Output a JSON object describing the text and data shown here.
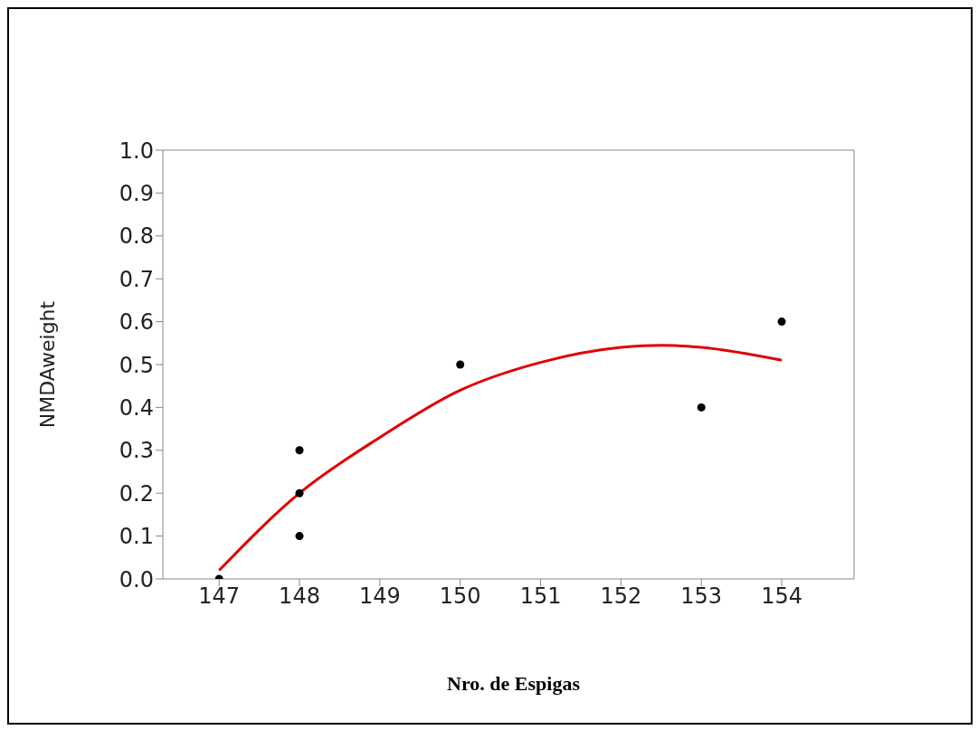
{
  "chart_data": {
    "type": "scatter",
    "xlabel": "Nro. de Espigas",
    "ylabel": "NMDAweight",
    "xlim": [
      146.3,
      154.9
    ],
    "xticks": [
      147,
      148,
      149,
      150,
      151,
      152,
      153,
      154
    ],
    "ylim": [
      0,
      1
    ],
    "yticks": [
      {
        "value": 0,
        "label": "0.0"
      },
      {
        "value": 0.1,
        "label": "0.1"
      },
      {
        "value": 0.2,
        "label": "0.2"
      },
      {
        "value": 0.3,
        "label": "0.3"
      },
      {
        "value": 0.4,
        "label": "0.4"
      },
      {
        "value": 0.5,
        "label": "0.5"
      },
      {
        "value": 0.6,
        "label": "0.6"
      },
      {
        "value": 0.7,
        "label": "0.7"
      },
      {
        "value": 0.8,
        "label": "0.8"
      },
      {
        "value": 0.9,
        "label": "0.9"
      },
      {
        "value": 1,
        "label": "1.0"
      }
    ],
    "grid": false,
    "marker": "circle",
    "series": [
      {
        "type": "scatter",
        "color": "#000000",
        "x": [
          147,
          148,
          148,
          148,
          150,
          153,
          154
        ],
        "values": [
          0,
          0.3,
          0.2,
          0.1,
          0.5,
          0.4,
          0.6
        ]
      },
      {
        "type": "line",
        "color": "#e00000",
        "line_style": "solid",
        "marker": "none",
        "x": [
          147,
          148,
          149,
          150,
          151,
          152,
          152.5,
          153,
          154
        ],
        "values": [
          0.02,
          0.2,
          0.33,
          0.44,
          0.505,
          0.54,
          0.545,
          0.54,
          0.51
        ]
      }
    ]
  }
}
